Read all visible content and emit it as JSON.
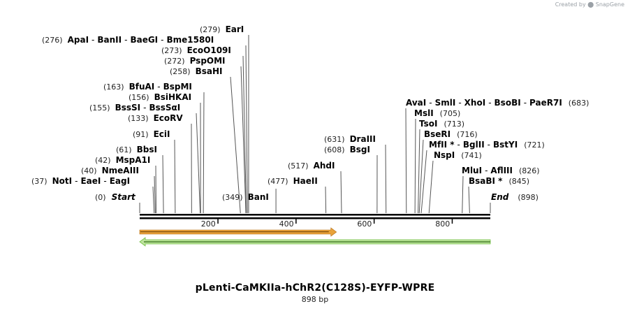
{
  "credit": {
    "prefix": "Created by",
    "brand": "SnapGene"
  },
  "plasmid": {
    "name": "pLenti-CaMKIIa-hChR2(C128S)-EYFP-WPRE",
    "length_label": "898 bp",
    "length": 898
  },
  "ends": {
    "start": {
      "label": "Start",
      "pos": "(0)"
    },
    "end": {
      "label": "End",
      "pos": "(898)"
    }
  },
  "scale_ticks": [
    "200",
    "400",
    "600",
    "800"
  ],
  "scale_tick_values": [
    200,
    400,
    600,
    800
  ],
  "features": [
    {
      "name": "CaMKIIa promoter arrow",
      "start": 1,
      "end": 504,
      "direction": "forward",
      "color": "#e8a23a"
    },
    {
      "name": "backbone arrow",
      "start": 1,
      "end": 898,
      "direction": "reverse",
      "color": "#6fbf3f"
    }
  ],
  "sites": [
    {
      "label": "(279)",
      "names": [
        "EarI"
      ],
      "site": 279
    },
    {
      "label": "(276)",
      "names": [
        "ApaI",
        "BanII",
        "BaeGI",
        "Bme1580I"
      ],
      "site": 276
    },
    {
      "label": "(273)",
      "names": [
        "EcoO109I"
      ],
      "site": 273
    },
    {
      "label": "(272)",
      "names": [
        "PspOMI"
      ],
      "site": 272
    },
    {
      "label": "(258)",
      "names": [
        "BsaHI"
      ],
      "site": 258
    },
    {
      "label": "(163)",
      "names": [
        "BfuAI",
        "BspMI"
      ],
      "site": 163
    },
    {
      "label": "(156)",
      "names": [
        "BsiHKAI"
      ],
      "site": 156
    },
    {
      "label": "(155)",
      "names": [
        "BssSI",
        "BssSαI"
      ],
      "site": 155
    },
    {
      "label": "(133)",
      "names": [
        "EcoRV"
      ],
      "site": 133
    },
    {
      "label": "(91)",
      "names": [
        "EciI"
      ],
      "site": 91
    },
    {
      "label": "(61)",
      "names": [
        "BbsI"
      ],
      "site": 61
    },
    {
      "label": "(42)",
      "names": [
        "MspA1I"
      ],
      "site": 42
    },
    {
      "label": "(40)",
      "names": [
        "NmeAIII"
      ],
      "site": 40
    },
    {
      "label": "(37)",
      "names": [
        "NotI",
        "EaeI",
        "EagI"
      ],
      "site": 37
    },
    {
      "label": "(349)",
      "names": [
        "BanI"
      ],
      "site": 349
    },
    {
      "label": "(477)",
      "names": [
        "HaeII"
      ],
      "site": 477
    },
    {
      "label": "(517)",
      "names": [
        "AhdI"
      ],
      "site": 517
    },
    {
      "label": "(608)",
      "names": [
        "BsgI"
      ],
      "site": 608
    },
    {
      "label": "(631)",
      "names": [
        "DraIII"
      ],
      "site": 631
    },
    {
      "label": "(683)",
      "names": [
        "AvaI",
        "SmlI",
        "XhoI",
        "BsoBI",
        "PaeR7I"
      ],
      "site": 683
    },
    {
      "label": "(705)",
      "names": [
        "MslI"
      ],
      "site": 705
    },
    {
      "label": "(713)",
      "names": [
        "TsoI"
      ],
      "site": 713
    },
    {
      "label": "(716)",
      "names": [
        "BseRI"
      ],
      "site": 716
    },
    {
      "label": "(721)",
      "names": [
        "MfII *",
        "BglII",
        "BstYI"
      ],
      "site": 721
    },
    {
      "label": "(741)",
      "names": [
        "NspI"
      ],
      "site": 741
    },
    {
      "label": "(826)",
      "names": [
        "MluI",
        "AflIII"
      ],
      "site": 826
    },
    {
      "label": "(845)",
      "names": [
        "BsaBI *"
      ],
      "site": 845
    }
  ]
}
